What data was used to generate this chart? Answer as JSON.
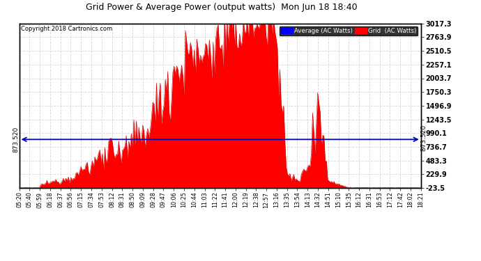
{
  "title": "Grid Power & Average Power (output watts)  Mon Jun 18 18:40",
  "copyright": "Copyright 2018 Cartronics.com",
  "yticks_right": [
    3017.3,
    2763.9,
    2510.5,
    2257.1,
    2003.7,
    1750.3,
    1496.9,
    1243.5,
    990.1,
    736.7,
    483.3,
    229.9,
    -23.5
  ],
  "avg_line_value": 873.52,
  "avg_label": "873.520",
  "ymin": -23.5,
  "ymax": 3017.3,
  "fill_color": "#ff0000",
  "line_color": "#cc0000",
  "avg_line_color": "#0000bb",
  "background_color": "#ffffff",
  "grid_color": "#cccccc",
  "xtick_labels": [
    "05:20",
    "05:40",
    "05:59",
    "06:18",
    "06:37",
    "06:56",
    "07:15",
    "07:34",
    "07:53",
    "08:12",
    "08:31",
    "08:50",
    "09:09",
    "09:28",
    "09:47",
    "10:06",
    "10:25",
    "10:44",
    "11:03",
    "11:22",
    "11:41",
    "12:00",
    "12:19",
    "12:38",
    "12:57",
    "13:16",
    "13:35",
    "13:54",
    "14:13",
    "14:32",
    "14:51",
    "15:10",
    "15:35",
    "16:12",
    "16:31",
    "16:53",
    "17:12",
    "17:42",
    "18:02",
    "18:21"
  ]
}
